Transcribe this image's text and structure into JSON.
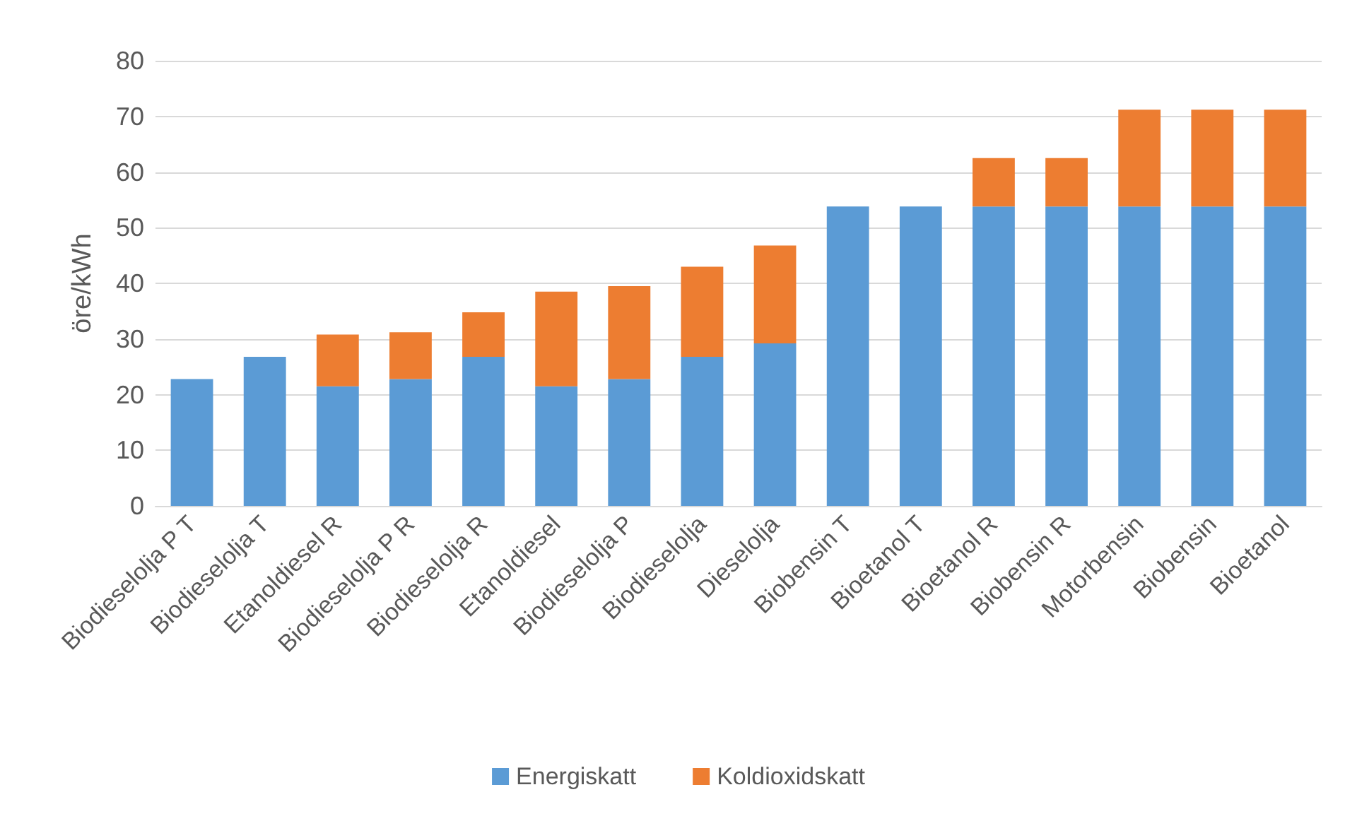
{
  "chart_data": {
    "type": "bar",
    "stacked": true,
    "ylabel": "öre/kWh",
    "categories": [
      "Biodieselolja P T",
      "Biodieselolja T",
      "Etanoldiesel R",
      "Biodieselolja P R",
      "Biodieselolja R",
      "Etanoldiesel",
      "Biodieselolja P",
      "Biodieselolja",
      "Dieselolja",
      "Biobensin T",
      "Bioetanol T",
      "Bioetanol R",
      "Biobensin R",
      "Motorbensin",
      "Biobensin",
      "Bioetanol"
    ],
    "series": [
      {
        "name": "Energiskatt",
        "color": "#5b9bd5",
        "values": [
          22.8,
          26.8,
          21.5,
          22.8,
          26.8,
          21.5,
          22.8,
          26.8,
          29.2,
          53.8,
          53.8,
          53.8,
          53.8,
          53.8,
          53.8,
          53.8
        ]
      },
      {
        "name": "Koldioxidskatt",
        "color": "#ed7d31",
        "values": [
          null,
          null,
          9.3,
          8.4,
          8.0,
          17.0,
          16.7,
          16.2,
          17.6,
          null,
          null,
          8.7,
          8.7,
          17.4,
          17.4,
          17.4
        ]
      }
    ],
    "ylim": [
      0,
      80
    ],
    "yticks": [
      0,
      10,
      20,
      30,
      40,
      50,
      60,
      70,
      80
    ],
    "grid": "y",
    "legend": "bottom"
  }
}
